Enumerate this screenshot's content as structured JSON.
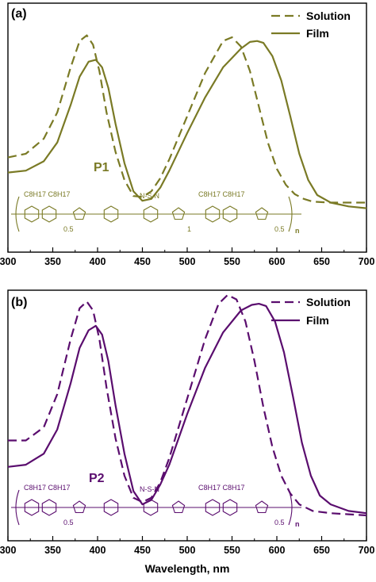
{
  "chart_data": [
    {
      "type": "line",
      "panel_label": "(a)",
      "title": "",
      "xlabel": "",
      "ylabel": "",
      "xlim": [
        300,
        700
      ],
      "xticks": [
        300,
        350,
        400,
        450,
        500,
        550,
        600,
        650,
        700
      ],
      "xtick_labels": [
        "300",
        "350",
        "400",
        "450",
        "500",
        "550",
        "600",
        "650",
        "700"
      ],
      "legend_position": "top-right",
      "polymer_label": "P1",
      "color": "#7a7a25",
      "structure": {
        "left_substituents": "C8H17   C8H17",
        "mid_substituent": "N-S-N",
        "right_substituent": "C8H17   C8H17",
        "subscript_left": "0.5",
        "subscript_mid": "1",
        "subscript_right": "0.5",
        "repeat": "n"
      },
      "series": [
        {
          "name": "Solution",
          "style": "dashed",
          "x": [
            300,
            320,
            340,
            355,
            370,
            380,
            388,
            395,
            402,
            410,
            420,
            430,
            440,
            450,
            460,
            470,
            480,
            500,
            520,
            540,
            550,
            560,
            570,
            580,
            590,
            600,
            610,
            620,
            630,
            640,
            660,
            680,
            700
          ],
          "y": [
            0.28,
            0.3,
            0.38,
            0.52,
            0.76,
            0.9,
            0.93,
            0.88,
            0.74,
            0.52,
            0.31,
            0.16,
            0.075,
            0.07,
            0.1,
            0.17,
            0.27,
            0.5,
            0.73,
            0.9,
            0.92,
            0.87,
            0.74,
            0.55,
            0.36,
            0.22,
            0.135,
            0.085,
            0.06,
            0.045,
            0.04,
            0.04,
            0.04
          ]
        },
        {
          "name": "Film",
          "style": "solid",
          "x": [
            300,
            320,
            340,
            355,
            370,
            380,
            390,
            398,
            405,
            412,
            420,
            430,
            440,
            450,
            460,
            470,
            480,
            500,
            520,
            540,
            560,
            570,
            578,
            585,
            595,
            605,
            615,
            625,
            635,
            645,
            660,
            680,
            700
          ],
          "y": [
            0.2,
            0.21,
            0.26,
            0.36,
            0.56,
            0.71,
            0.79,
            0.8,
            0.76,
            0.65,
            0.46,
            0.25,
            0.1,
            0.05,
            0.06,
            0.12,
            0.21,
            0.41,
            0.6,
            0.76,
            0.86,
            0.895,
            0.9,
            0.89,
            0.82,
            0.69,
            0.5,
            0.3,
            0.16,
            0.08,
            0.04,
            0.02,
            0.01
          ]
        }
      ]
    },
    {
      "type": "line",
      "panel_label": "(b)",
      "title": "",
      "xlabel": "Wavelength, nm",
      "ylabel": "",
      "xlim": [
        300,
        700
      ],
      "xticks": [
        300,
        350,
        400,
        450,
        500,
        550,
        600,
        650,
        700
      ],
      "xtick_labels": [
        "300",
        "350",
        "400",
        "450",
        "500",
        "550",
        "600",
        "650",
        "700"
      ],
      "legend_position": "top-right",
      "polymer_label": "P2",
      "color": "#5a0d6e",
      "structure": {
        "left_substituents": "C8H17   C8H17",
        "mid_substituent": "N-S-N",
        "right_substituent": "C8H17   C8H17",
        "subscript_left": "0.5",
        "subscript_right": "0.5",
        "repeat": "n"
      },
      "series": [
        {
          "name": "Solution",
          "style": "dashed",
          "x": [
            300,
            320,
            340,
            355,
            370,
            380,
            388,
            395,
            402,
            410,
            420,
            430,
            440,
            450,
            460,
            470,
            480,
            500,
            520,
            535,
            545,
            555,
            565,
            575,
            585,
            595,
            605,
            615,
            625,
            640,
            660,
            680,
            700
          ],
          "y": [
            0.34,
            0.34,
            0.4,
            0.55,
            0.8,
            0.94,
            0.97,
            0.93,
            0.8,
            0.58,
            0.35,
            0.18,
            0.08,
            0.06,
            0.08,
            0.15,
            0.26,
            0.53,
            0.8,
            0.96,
            1.0,
            0.98,
            0.88,
            0.7,
            0.49,
            0.31,
            0.18,
            0.1,
            0.05,
            0.02,
            0.01,
            0.005,
            0.0
          ]
        },
        {
          "name": "Film",
          "style": "solid",
          "x": [
            300,
            320,
            340,
            355,
            370,
            380,
            390,
            398,
            405,
            412,
            420,
            430,
            440,
            450,
            460,
            470,
            480,
            500,
            520,
            540,
            560,
            572,
            580,
            588,
            598,
            608,
            618,
            628,
            638,
            648,
            660,
            680,
            700
          ],
          "y": [
            0.22,
            0.23,
            0.28,
            0.39,
            0.6,
            0.76,
            0.84,
            0.86,
            0.82,
            0.7,
            0.5,
            0.28,
            0.11,
            0.05,
            0.07,
            0.14,
            0.23,
            0.46,
            0.67,
            0.83,
            0.93,
            0.955,
            0.96,
            0.95,
            0.88,
            0.74,
            0.54,
            0.33,
            0.18,
            0.09,
            0.05,
            0.02,
            0.01
          ]
        }
      ]
    }
  ]
}
